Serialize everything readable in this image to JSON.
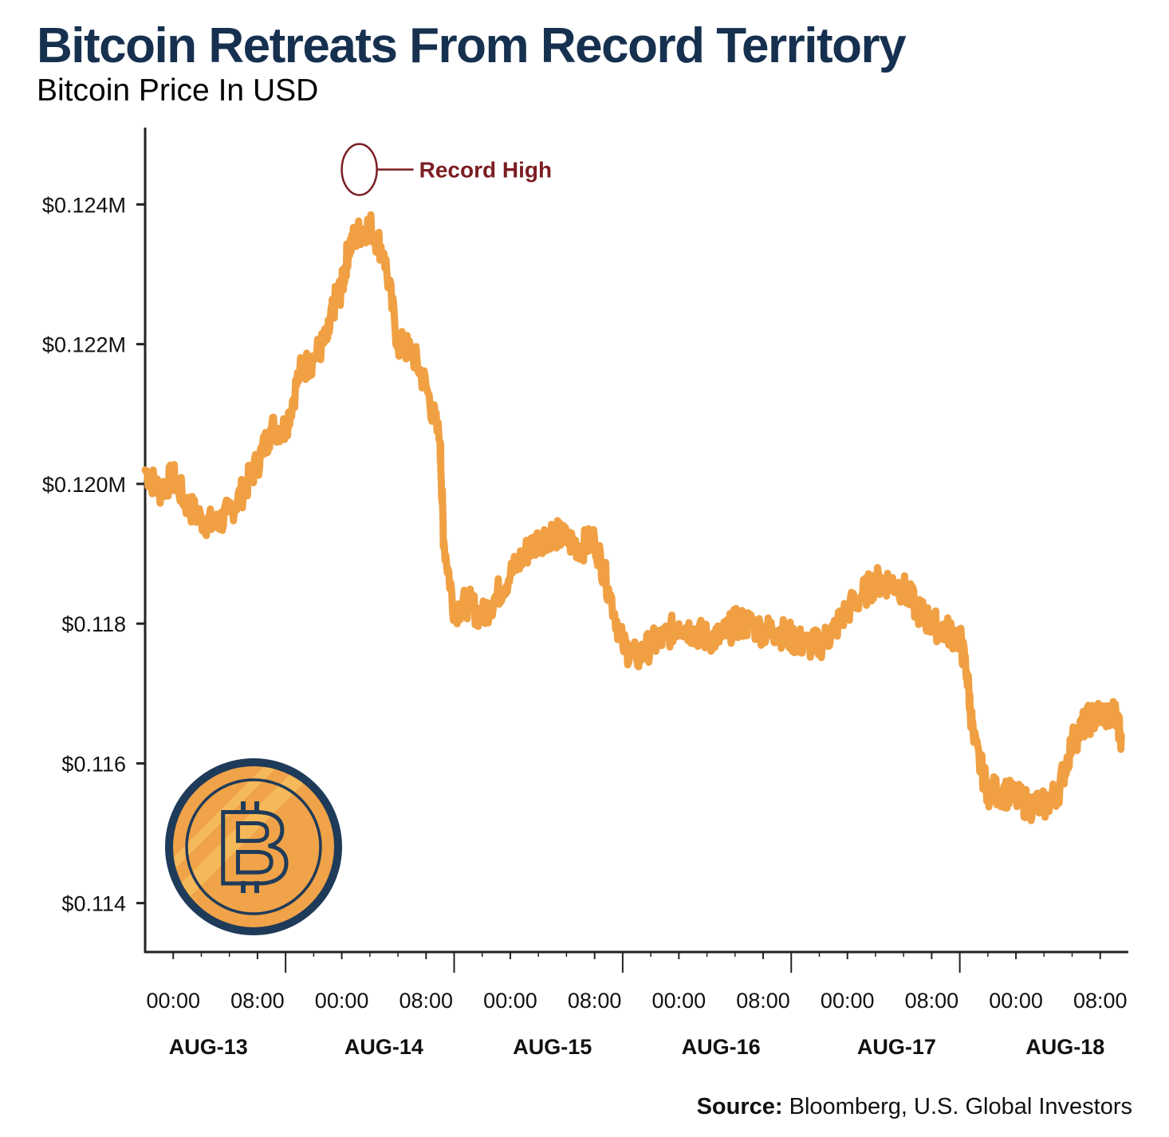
{
  "colors": {
    "title": "#16304f",
    "line": "#f0a043",
    "axis": "#222222",
    "annotation": "#7a1e22",
    "coin_fill": "#f0a348",
    "coin_light": "#f6c262",
    "coin_border": "#1f3b5a"
  },
  "icons": {
    "coin": "bitcoin-coin-icon"
  },
  "header": {
    "title": "Bitcoin Retreats From Record Territory",
    "subtitle": "Bitcoin Price In USD"
  },
  "source": {
    "label": "Source:",
    "text": "Bloomberg, U.S. Global Investors"
  },
  "chart_data": {
    "type": "line",
    "title": "Bitcoin Retreats From Record Territory",
    "subtitle": "Bitcoin Price In USD",
    "xlabel": "",
    "ylabel": "",
    "ylim": [
      0.1133,
      0.1251
    ],
    "y_ticks": [
      {
        "value": 0.124,
        "label": "$0.124M"
      },
      {
        "value": 0.122,
        "label": "$0.122M"
      },
      {
        "value": 0.12,
        "label": "$0.120M"
      },
      {
        "value": 0.118,
        "label": "$0.118"
      },
      {
        "value": 0.116,
        "label": "$0.116"
      },
      {
        "value": 0.114,
        "label": "$0.114"
      }
    ],
    "x_unit": "hours since AUG-13 00:00",
    "xlim": [
      -4,
      136
    ],
    "x_ticks": [
      {
        "value": 0,
        "label": "00:00"
      },
      {
        "value": 12,
        "label": "08:00"
      },
      {
        "value": 24,
        "label": "00:00"
      },
      {
        "value": 36,
        "label": "08:00"
      },
      {
        "value": 48,
        "label": "00:00"
      },
      {
        "value": 60,
        "label": "08:00"
      },
      {
        "value": 72,
        "label": "00:00"
      },
      {
        "value": 84,
        "label": "08:00"
      },
      {
        "value": 96,
        "label": "00:00"
      },
      {
        "value": 108,
        "label": "08:00"
      },
      {
        "value": 120,
        "label": "00:00"
      },
      {
        "value": 132,
        "label": "08:00"
      }
    ],
    "day_labels": [
      {
        "value": 5,
        "label": "AUG-13"
      },
      {
        "value": 30,
        "label": "AUG-14"
      },
      {
        "value": 54,
        "label": "AUG-15"
      },
      {
        "value": 78,
        "label": "AUG-16"
      },
      {
        "value": 103,
        "label": "AUG-17"
      },
      {
        "value": 127,
        "label": "AUG-18"
      }
    ],
    "grid": false,
    "legend": "none",
    "annotations": [
      {
        "label": "Record High",
        "x": 26.5,
        "y": 0.1245
      }
    ],
    "series": [
      {
        "name": "",
        "x": [
          -4,
          -2,
          0,
          2,
          4,
          6,
          8,
          10,
          12,
          14,
          16,
          18,
          20,
          22,
          23,
          24,
          25,
          26.5,
          28,
          30,
          32,
          34,
          36,
          38,
          38.5,
          40,
          42,
          44,
          46,
          48,
          50,
          52,
          54,
          56,
          58,
          60,
          62,
          64,
          66,
          68,
          70,
          72,
          74,
          76,
          78,
          80,
          82,
          84,
          86,
          88,
          90,
          92,
          94,
          96,
          98,
          100,
          102,
          104,
          106,
          108,
          110,
          112,
          113,
          114,
          116,
          118,
          120,
          122,
          124,
          126,
          128,
          130,
          132,
          134,
          135
        ],
        "y": [
          0.1202,
          0.1199,
          0.1201,
          0.1197,
          0.1195,
          0.1194,
          0.1196,
          0.1199,
          0.1203,
          0.1208,
          0.1208,
          0.1216,
          0.1218,
          0.1221,
          0.1226,
          0.1228,
          0.1234,
          0.1236,
          0.1237,
          0.1233,
          0.122,
          0.1219,
          0.1214,
          0.1206,
          0.1192,
          0.1182,
          0.1183,
          0.1181,
          0.1184,
          0.1187,
          0.119,
          0.1192,
          0.1193,
          0.1192,
          0.1191,
          0.1192,
          0.1185,
          0.1177,
          0.1175,
          0.1177,
          0.1178,
          0.118,
          0.1179,
          0.1178,
          0.1178,
          0.118,
          0.118,
          0.1179,
          0.1179,
          0.1178,
          0.1177,
          0.1177,
          0.1179,
          0.1182,
          0.1184,
          0.1186,
          0.1186,
          0.1185,
          0.1182,
          0.118,
          0.1179,
          0.1178,
          0.1173,
          0.1163,
          0.1156,
          0.1156,
          0.1155,
          0.1154,
          0.1154,
          0.1156,
          0.1163,
          0.1166,
          0.1167,
          0.1167,
          0.1164
        ]
      }
    ]
  }
}
